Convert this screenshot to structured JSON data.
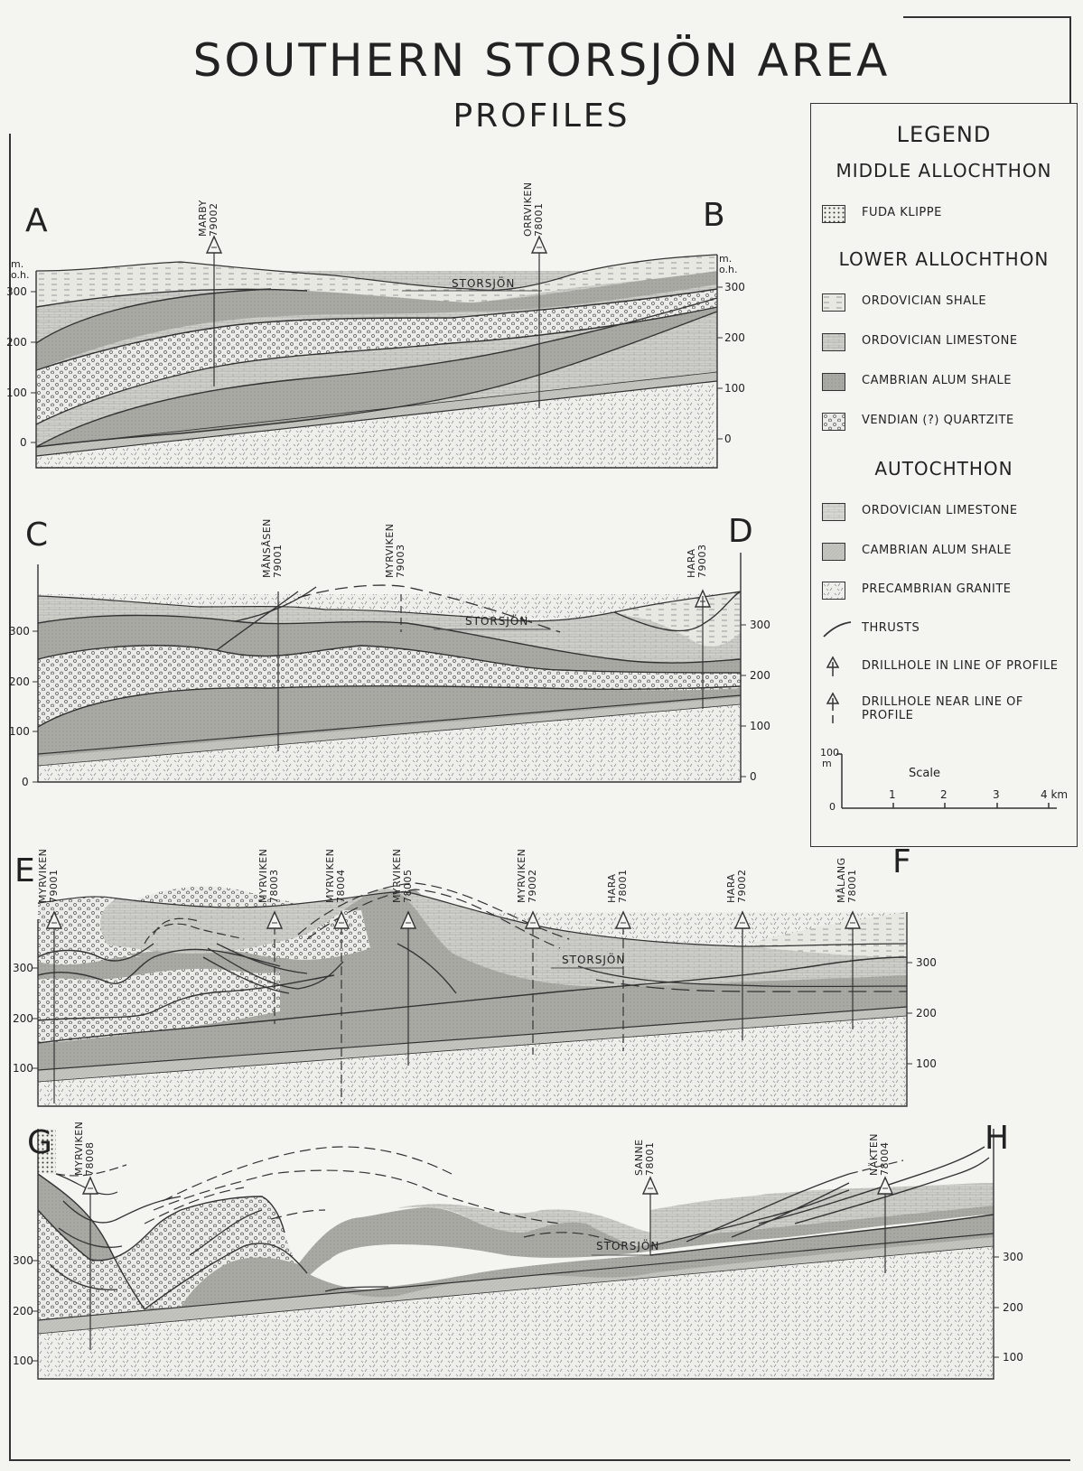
{
  "title": "SOUTHERN STORSJÖN AREA",
  "subtitle": "PROFILES",
  "legend": {
    "title": "LEGEND",
    "groups": [
      "MIDDLE ALLOCHTHON",
      "LOWER ALLOCHTHON",
      "AUTOCHTHON"
    ],
    "items": [
      {
        "label": "FUDA KLIPPE",
        "pattern": "dots-fine"
      },
      {
        "label": "ORDOVICIAN SHALE",
        "pattern": "dash-light"
      },
      {
        "label": "ORDOVICIAN LIMESTONE",
        "pattern": "brick"
      },
      {
        "label": "CAMBRIAN ALUM SHALE",
        "pattern": "alum"
      },
      {
        "label": "VENDIAN (?) QUARTZITE",
        "pattern": "circles"
      },
      {
        "label": "ORDOVICIAN LIMESTONE",
        "pattern": "brick-autoch"
      },
      {
        "label": "CAMBRIAN ALUM SHALE",
        "pattern": "alum-autoch"
      },
      {
        "label": "PRECAMBRIAN GRANITE",
        "pattern": "granite"
      },
      {
        "label": "THRUSTS",
        "pattern": "thrust"
      },
      {
        "label": "DRILLHOLE IN LINE OF PROFILE",
        "pattern": "drill"
      },
      {
        "label": "DRILLHOLE NEAR LINE OF PROFILE",
        "pattern": "drill-near"
      }
    ],
    "scale": {
      "title": "Scale",
      "vertical": [
        "100",
        "m",
        "0"
      ],
      "ticks": [
        "1",
        "2",
        "3",
        "4 km"
      ]
    }
  },
  "profiles": [
    {
      "id": "AB",
      "start": "A",
      "end": "B",
      "unit_top": "m.",
      "unit_bottom": "o.h.",
      "left_ticks": [
        "300",
        "200",
        "100",
        "0"
      ],
      "right_ticks": [
        "300",
        "200",
        "100",
        "0"
      ],
      "lake": "STORSJÖN",
      "drillholes": [
        {
          "name": "MARBY",
          "number": "79002"
        },
        {
          "name": "ORRVIKEN",
          "number": "78001"
        }
      ]
    },
    {
      "id": "CD",
      "start": "C",
      "end": "D",
      "left_ticks": [
        "300",
        "200",
        "100",
        "0"
      ],
      "right_ticks": [
        "300",
        "200",
        "100",
        "0"
      ],
      "lake": "STORSJÖN",
      "drillholes": [
        {
          "name": "MÅNSÅSEN",
          "number": "79001"
        },
        {
          "name": "MYRVIKEN",
          "number": "79003"
        },
        {
          "name": "HARA",
          "number": "79003"
        }
      ]
    },
    {
      "id": "EF",
      "start": "E",
      "end": "F",
      "left_ticks": [
        "300",
        "200",
        "100"
      ],
      "right_ticks": [
        "300",
        "200",
        "100"
      ],
      "lake": "STORSJÖN",
      "drillholes": [
        {
          "name": "MYRVIKEN",
          "number": "79001"
        },
        {
          "name": "MYRVIKEN",
          "number": "78003"
        },
        {
          "name": "MYRVIKEN",
          "number": "78004"
        },
        {
          "name": "MYRVIKEN",
          "number": "78005"
        },
        {
          "name": "MYRVIKEN",
          "number": "79002"
        },
        {
          "name": "HARA",
          "number": "78001"
        },
        {
          "name": "HARA",
          "number": "79002"
        },
        {
          "name": "MÅLANG",
          "number": "78001"
        }
      ]
    },
    {
      "id": "GH",
      "start": "G",
      "end": "H",
      "left_ticks": [
        "300",
        "200",
        "100"
      ],
      "right_ticks": [
        "300",
        "200",
        "100"
      ],
      "lake": "STORSJÖN",
      "drillholes": [
        {
          "name": "MYRVIKEN",
          "number": "78008"
        },
        {
          "name": "SANNE",
          "number": "78001"
        },
        {
          "name": "NÄKTEN",
          "number": "78004"
        }
      ]
    }
  ]
}
